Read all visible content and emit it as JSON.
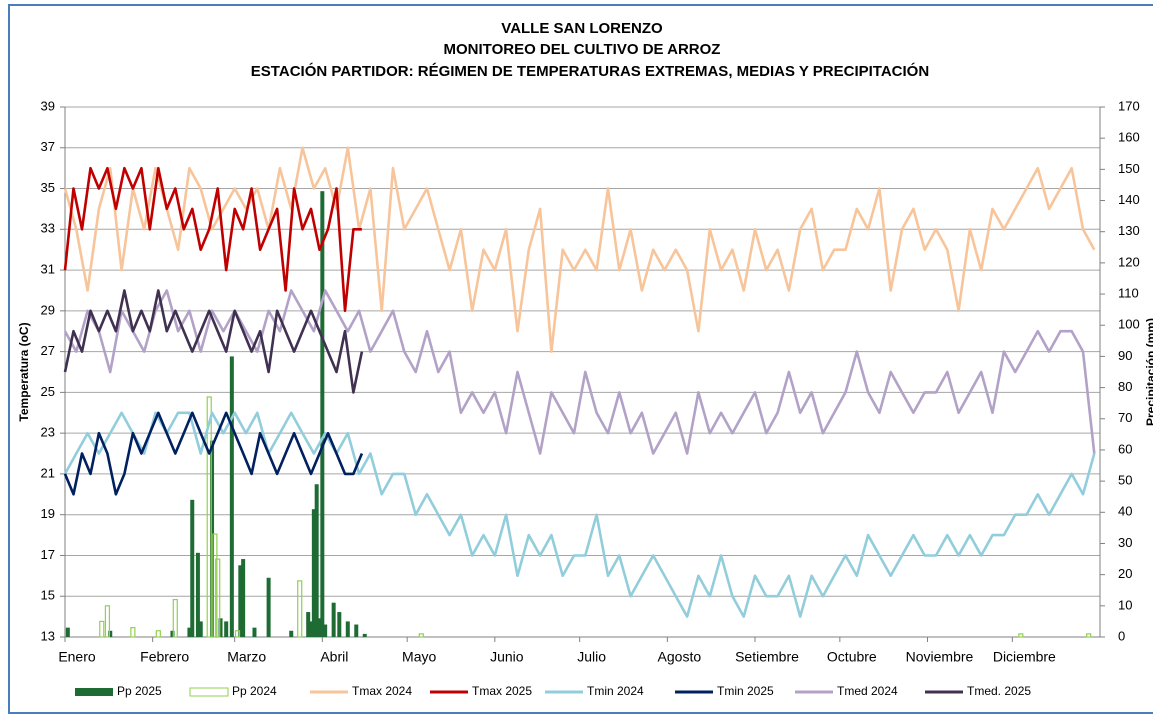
{
  "chart_data": {
    "type": "combo",
    "title": [
      "VALLE SAN LORENZO",
      "MONITOREO DEL CULTIVO DE ARROZ",
      "ESTACIÓN PARTIDOR: RÉGIMEN DE TEMPERATURAS EXTREMAS, MEDIAS Y PRECIPITACIÓN"
    ],
    "ylabel": "Temperatura (oC)",
    "y2label": "Precipitación (mm)",
    "xlim": [
      0,
      366
    ],
    "xticks": [
      {
        "value": 0,
        "label": "Enero"
      },
      {
        "value": 31,
        "label": "Febrero"
      },
      {
        "value": 60,
        "label": "Marzo"
      },
      {
        "value": 91,
        "label": "Abril"
      },
      {
        "value": 121,
        "label": "Mayo"
      },
      {
        "value": 152,
        "label": "Junio"
      },
      {
        "value": 182,
        "label": "Julio"
      },
      {
        "value": 213,
        "label": "Agosto"
      },
      {
        "value": 244,
        "label": "Setiembre"
      },
      {
        "value": 274,
        "label": "Octubre"
      },
      {
        "value": 305,
        "label": "Noviembre"
      },
      {
        "value": 335,
        "label": "Diciembre"
      }
    ],
    "ylim": [
      13,
      39
    ],
    "yticks": [
      13,
      15,
      17,
      19,
      21,
      23,
      25,
      27,
      29,
      31,
      33,
      35,
      37,
      39
    ],
    "y2lim": [
      0,
      170
    ],
    "y2ticks": [
      0,
      10,
      20,
      30,
      40,
      50,
      60,
      70,
      80,
      90,
      100,
      110,
      120,
      130,
      140,
      150,
      160,
      170
    ],
    "grid": true,
    "legend": "bottom",
    "x": [
      0,
      4,
      8,
      12,
      16,
      20,
      24,
      28,
      32,
      36,
      40,
      44,
      48,
      52,
      56,
      60,
      64,
      68,
      72,
      76,
      80,
      84,
      88,
      92,
      96,
      100,
      104,
      108,
      112,
      116,
      120,
      124,
      128,
      132,
      136,
      140,
      144,
      148,
      152,
      156,
      160,
      164,
      168,
      172,
      176,
      180,
      184,
      188,
      192,
      196,
      200,
      204,
      208,
      212,
      216,
      220,
      224,
      228,
      232,
      236,
      240,
      244,
      248,
      252,
      256,
      260,
      264,
      268,
      272,
      276,
      280,
      284,
      288,
      292,
      296,
      300,
      304,
      308,
      312,
      316,
      320,
      324,
      328,
      332,
      336,
      340,
      344,
      348,
      352,
      356,
      360,
      364
    ],
    "series": [
      {
        "name": "Pp 2025",
        "type": "bar",
        "style": "filled",
        "axis": "y2",
        "color": "#1e6b34",
        "x": [
          1,
          16,
          38,
          44,
          45,
          47,
          48,
          52,
          55,
          57,
          59,
          62,
          63,
          67,
          72,
          80,
          86,
          87,
          88,
          89,
          90,
          91,
          92,
          95,
          97,
          100,
          103,
          106
        ],
        "values": [
          3,
          2,
          2,
          3,
          44,
          27,
          5,
          63,
          6,
          5,
          90,
          23,
          25,
          3,
          19,
          2,
          8,
          5,
          41,
          49,
          6,
          143,
          4,
          11,
          8,
          5,
          4,
          1
        ]
      },
      {
        "name": "Pp 2024",
        "type": "bar",
        "style": "outline",
        "axis": "y2",
        "color": "#92d050",
        "x": [
          13,
          15,
          24,
          33,
          39,
          51,
          53,
          54,
          61,
          83,
          126,
          338,
          362
        ],
        "values": [
          5,
          10,
          3,
          2,
          12,
          77,
          33,
          25,
          2,
          18,
          1,
          1,
          1
        ]
      },
      {
        "name": "Tmax 2024",
        "type": "line",
        "color": "#f8c49a",
        "values": [
          35,
          33,
          30,
          34,
          36,
          31,
          35,
          33,
          36,
          34,
          32,
          36,
          35,
          33,
          34,
          35,
          34,
          35,
          33,
          36,
          34,
          37,
          35,
          36,
          34,
          37,
          33,
          35,
          29,
          36,
          33,
          34,
          35,
          33,
          31,
          33,
          29,
          32,
          31,
          33,
          28,
          32,
          34,
          27,
          32,
          31,
          32,
          31,
          35,
          31,
          33,
          30,
          32,
          31,
          32,
          31,
          28,
          33,
          31,
          32,
          30,
          33,
          31,
          32,
          30,
          33,
          34,
          31,
          32,
          32,
          34,
          33,
          35,
          30,
          33,
          34,
          32,
          33,
          32,
          29,
          33,
          31,
          34,
          33,
          34,
          35,
          36,
          34,
          35,
          36,
          33,
          32
        ]
      },
      {
        "name": "Tmax 2025",
        "type": "line",
        "color": "#c00000",
        "x": [
          0,
          3,
          6,
          9,
          12,
          15,
          18,
          21,
          24,
          27,
          30,
          33,
          36,
          39,
          42,
          45,
          48,
          51,
          54,
          57,
          60,
          63,
          66,
          69,
          72,
          75,
          78,
          81,
          84,
          87,
          90,
          93,
          96,
          99,
          102,
          105
        ],
        "values": [
          31,
          35,
          33,
          36,
          35,
          36,
          34,
          36,
          35,
          36,
          33,
          36,
          34,
          35,
          33,
          34,
          32,
          33,
          35,
          31,
          34,
          33,
          35,
          32,
          33,
          34,
          30,
          35,
          33,
          34,
          32,
          33,
          35,
          29,
          33,
          33
        ]
      },
      {
        "name": "Tmin 2024",
        "type": "line",
        "color": "#92cddc",
        "values": [
          21,
          22,
          23,
          22,
          23,
          24,
          23,
          22,
          24,
          23,
          24,
          24,
          22,
          24,
          23,
          24,
          23,
          24,
          22,
          23,
          24,
          23,
          22,
          23,
          22,
          23,
          21,
          22,
          20,
          21,
          21,
          19,
          20,
          19,
          18,
          19,
          17,
          18,
          17,
          19,
          16,
          18,
          17,
          18,
          16,
          17,
          17,
          19,
          16,
          17,
          15,
          16,
          17,
          16,
          15,
          14,
          16,
          15,
          17,
          15,
          14,
          16,
          15,
          15,
          16,
          14,
          16,
          15,
          16,
          17,
          16,
          18,
          17,
          16,
          17,
          18,
          17,
          17,
          18,
          17,
          18,
          17,
          18,
          18,
          19,
          19,
          20,
          19,
          20,
          21,
          20,
          22
        ]
      },
      {
        "name": "Tmin 2025",
        "type": "line",
        "color": "#002060",
        "x": [
          0,
          3,
          6,
          9,
          12,
          15,
          18,
          21,
          24,
          27,
          30,
          33,
          36,
          39,
          42,
          45,
          48,
          51,
          54,
          57,
          60,
          63,
          66,
          69,
          72,
          75,
          78,
          81,
          84,
          87,
          90,
          93,
          96,
          99,
          102,
          105
        ],
        "values": [
          21,
          20,
          22,
          21,
          23,
          22,
          20,
          21,
          23,
          22,
          23,
          24,
          23,
          22,
          23,
          24,
          23,
          22,
          23,
          24,
          23,
          22,
          21,
          23,
          22,
          21,
          22,
          23,
          22,
          21,
          22,
          23,
          22,
          21,
          21,
          22
        ]
      },
      {
        "name": "Tmed 2024",
        "type": "line",
        "color": "#b3a2c7",
        "values": [
          28,
          27,
          29,
          28,
          26,
          29,
          28,
          27,
          29,
          30,
          28,
          29,
          27,
          29,
          28,
          29,
          28,
          27,
          29,
          28,
          30,
          29,
          28,
          30,
          29,
          28,
          29,
          27,
          28,
          29,
          27,
          26,
          28,
          26,
          27,
          24,
          25,
          24,
          25,
          23,
          26,
          24,
          22,
          25,
          24,
          23,
          26,
          24,
          23,
          25,
          23,
          24,
          22,
          23,
          24,
          22,
          25,
          23,
          24,
          23,
          24,
          25,
          23,
          24,
          26,
          24,
          25,
          23,
          24,
          25,
          27,
          25,
          24,
          26,
          25,
          24,
          25,
          25,
          26,
          24,
          25,
          26,
          24,
          27,
          26,
          27,
          28,
          27,
          28,
          28,
          27,
          22
        ]
      },
      {
        "name": "Tmed. 2025",
        "type": "line",
        "color": "#403151",
        "x": [
          0,
          3,
          6,
          9,
          12,
          15,
          18,
          21,
          24,
          27,
          30,
          33,
          36,
          39,
          42,
          45,
          48,
          51,
          54,
          57,
          60,
          63,
          66,
          69,
          72,
          75,
          78,
          81,
          84,
          87,
          90,
          93,
          96,
          99,
          102,
          105
        ],
        "values": [
          26,
          28,
          27,
          29,
          28,
          29,
          28,
          30,
          28,
          29,
          28,
          30,
          28,
          29,
          28,
          27,
          28,
          29,
          28,
          27,
          29,
          28,
          27,
          28,
          26,
          29,
          28,
          27,
          28,
          29,
          28,
          27,
          26,
          28,
          25,
          27
        ]
      }
    ]
  }
}
